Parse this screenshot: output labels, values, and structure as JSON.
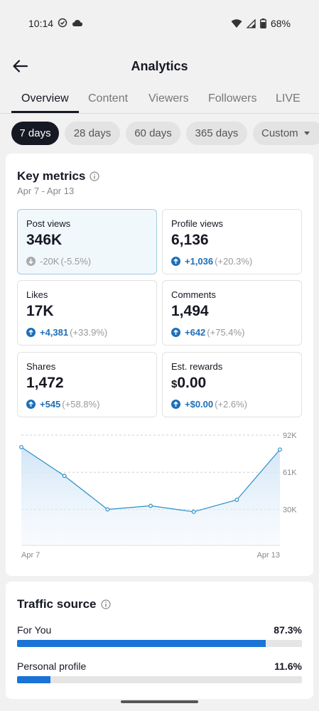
{
  "status_bar": {
    "time": "10:14",
    "battery": "68%"
  },
  "header": {
    "title": "Analytics"
  },
  "tabs": [
    {
      "label": "Overview",
      "active": true
    },
    {
      "label": "Content"
    },
    {
      "label": "Viewers"
    },
    {
      "label": "Followers"
    },
    {
      "label": "LIVE"
    }
  ],
  "chips": [
    {
      "label": "7 days",
      "active": true
    },
    {
      "label": "28 days"
    },
    {
      "label": "60 days"
    },
    {
      "label": "365 days"
    },
    {
      "label": "Custom"
    }
  ],
  "key_metrics": {
    "title": "Key metrics",
    "date_range": "Apr 7 - Apr 13",
    "items": [
      {
        "label": "Post views",
        "value": "346K",
        "change": "-20K",
        "pct": "(-5.5%)",
        "direction": "down",
        "selected": true
      },
      {
        "label": "Profile views",
        "value": "6,136",
        "change": "+1,036",
        "pct": "(+20.3%)",
        "direction": "up"
      },
      {
        "label": "Likes",
        "value": "17K",
        "change": "+4,381",
        "pct": "(+33.9%)",
        "direction": "up"
      },
      {
        "label": "Comments",
        "value": "1,494",
        "change": "+642",
        "pct": "(+75.4%)",
        "direction": "up"
      },
      {
        "label": "Shares",
        "value": "1,472",
        "change": "+545",
        "pct": "(+58.8%)",
        "direction": "up"
      },
      {
        "label": "Est. rewards",
        "value_prefix": "$",
        "value": "0.00",
        "change": "+$0.00",
        "pct": "(+2.6%)",
        "direction": "up"
      }
    ]
  },
  "chart_data": {
    "type": "area",
    "x": [
      "Apr 7",
      "Apr 8",
      "Apr 9",
      "Apr 10",
      "Apr 11",
      "Apr 12",
      "Apr 13"
    ],
    "x_tick_labels": [
      "Apr 7",
      "Apr 13"
    ],
    "values": [
      82000,
      58000,
      30000,
      33000,
      28000,
      38000,
      80000
    ],
    "y_ticks": [
      30000,
      61000,
      92000
    ],
    "y_tick_labels": [
      "30K",
      "61K",
      "92K"
    ],
    "ylim": [
      0,
      92000
    ],
    "grid": true,
    "line_color": "#2a8fc9"
  },
  "traffic_source": {
    "title": "Traffic source",
    "rows": [
      {
        "label": "For You",
        "pct_label": "87.3%",
        "value": 87.3
      },
      {
        "label": "Personal profile",
        "pct_label": "11.6%",
        "value": 11.6
      }
    ]
  },
  "colors": {
    "accent": "#1a73d6",
    "dark": "#161823"
  }
}
